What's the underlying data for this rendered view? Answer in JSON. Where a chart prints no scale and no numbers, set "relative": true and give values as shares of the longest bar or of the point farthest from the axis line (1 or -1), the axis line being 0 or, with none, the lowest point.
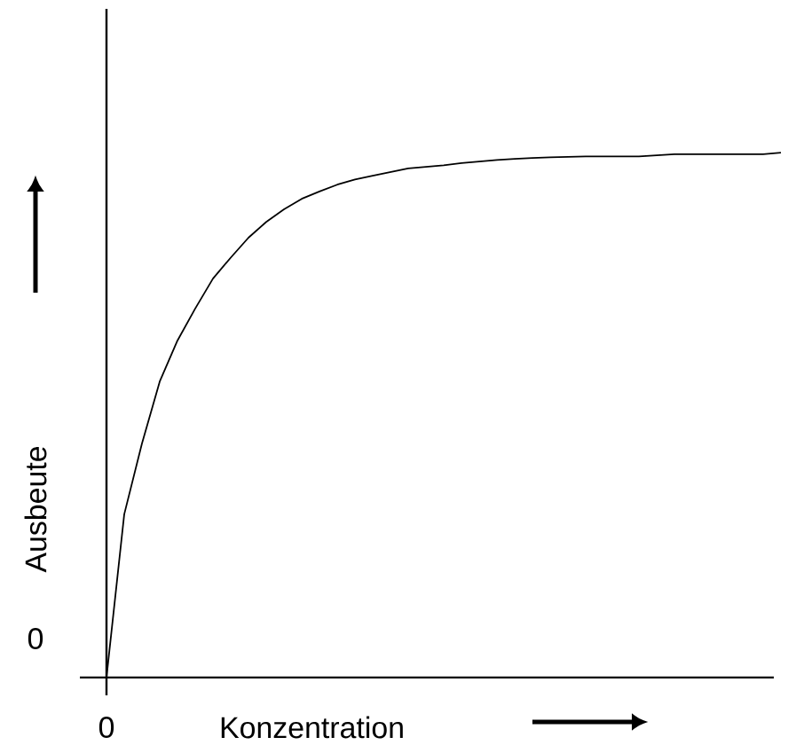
{
  "chart_data": {
    "type": "line",
    "relative": true,
    "xlabel": "Konzentration",
    "ylabel": "Ausbeute",
    "annotations": [
      "0",
      "0"
    ],
    "color": "#000000",
    "categories": [
      null,
      null,
      null,
      null,
      null,
      null,
      null,
      null,
      null,
      null,
      null,
      null,
      null,
      null,
      null,
      null,
      null,
      null,
      null,
      null,
      null,
      null,
      null,
      null,
      null,
      null,
      null,
      null,
      null,
      null,
      null,
      null,
      null,
      null,
      null,
      null,
      null,
      null,
      null
    ],
    "values": [
      0,
      0.311,
      0.446,
      0.564,
      0.642,
      0.703,
      0.76,
      0.8,
      0.838,
      0.868,
      0.892,
      0.912,
      0.926,
      0.939,
      0.949,
      0.956,
      0.963,
      0.97,
      0.973,
      0.976,
      0.98,
      0.983,
      0.986,
      0.988,
      0.99,
      0.991,
      0.992,
      0.993,
      0.993,
      0.993,
      0.993,
      0.995,
      0.997,
      0.997,
      0.997,
      0.997,
      0.997,
      0.997,
      1.0
    ]
  }
}
